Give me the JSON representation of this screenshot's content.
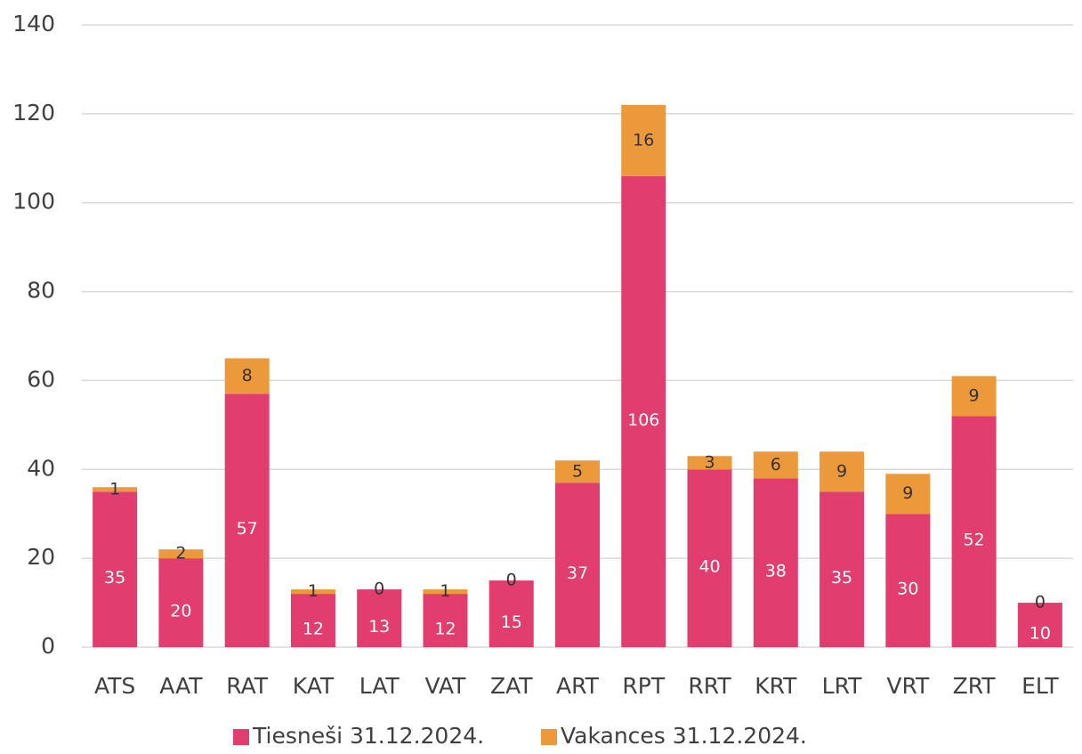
{
  "chart_data": {
    "type": "stacked_bar",
    "categories": [
      "ATS",
      "AAT",
      "RAT",
      "KAT",
      "LAT",
      "VAT",
      "ZAT",
      "ART",
      "RPT",
      "RRT",
      "KRT",
      "LRT",
      "VRT",
      "ZRT",
      "ELT"
    ],
    "series": [
      {
        "name": "Tiesneši 31.12.2024.",
        "color": "#e23d6f",
        "values": [
          35,
          20,
          57,
          12,
          13,
          12,
          15,
          37,
          106,
          40,
          38,
          35,
          30,
          52,
          10
        ]
      },
      {
        "name": "Vakances 31.12.2024.",
        "color": "#ec993c",
        "values": [
          1,
          2,
          8,
          1,
          0,
          1,
          0,
          5,
          16,
          3,
          6,
          9,
          9,
          9,
          0
        ]
      }
    ],
    "ylim": [
      0,
      140
    ],
    "yticks": [
      0,
      20,
      40,
      60,
      80,
      100,
      120,
      140
    ],
    "grid": true,
    "legend": "bottom"
  }
}
